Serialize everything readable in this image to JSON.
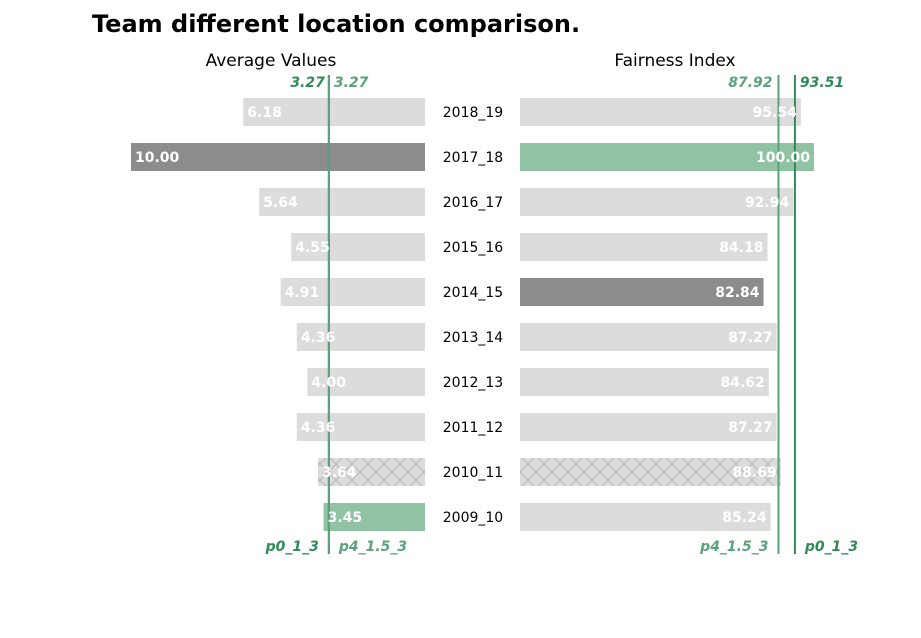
{
  "chart_data": {
    "type": "bar",
    "title": "Team different location comparison.",
    "categories": [
      "2018_19",
      "2017_18",
      "2016_17",
      "2015_16",
      "2014_15",
      "2013_14",
      "2012_13",
      "2011_12",
      "2010_11",
      "2009_10"
    ],
    "panels": [
      {
        "subtitle": "Average Values",
        "orientation": "horizontal-right-to-left",
        "xlim": [
          0,
          10
        ],
        "values": [
          6.18,
          10.0,
          5.64,
          4.55,
          4.91,
          4.36,
          4.0,
          4.36,
          3.64,
          3.45
        ],
        "value_labels": [
          "6.18",
          "10.00",
          "5.64",
          "4.55",
          "4.91",
          "4.36",
          "4.00",
          "4.36",
          "3.64",
          "3.45"
        ],
        "highlight": {
          "2017_18": "dark",
          "2009_10": "green",
          "2010_11": "hatched"
        },
        "reference_lines": [
          {
            "name": "p0_1_3",
            "value": 3.27,
            "label": "3.27",
            "color": "#2e8b57"
          },
          {
            "name": "p4_1.5_3",
            "value": 3.27,
            "label": "3.27",
            "color": "#5aa37a"
          }
        ]
      },
      {
        "subtitle": "Fairness Index",
        "orientation": "horizontal-left-to-right",
        "xlim": [
          0,
          100
        ],
        "values": [
          95.54,
          100.0,
          92.94,
          84.18,
          82.84,
          87.27,
          84.62,
          87.27,
          88.69,
          85.24
        ],
        "value_labels": [
          "95.54",
          "100.00",
          "92.94",
          "84.18",
          "82.84",
          "87.27",
          "84.62",
          "87.27",
          "88.69",
          "85.24"
        ],
        "highlight": {
          "2017_18": "green",
          "2014_15": "dark",
          "2010_11": "hatched"
        },
        "reference_lines": [
          {
            "name": "p4_1.5_3",
            "value": 87.92,
            "label": "87.92",
            "color": "#5aa37a"
          },
          {
            "name": "p0_1_3",
            "value": 93.51,
            "label": "93.51",
            "color": "#2e8b57"
          }
        ]
      }
    ],
    "colors": {
      "default_bar": "#dcdcdc",
      "dark_bar": "#8c8c8c",
      "green_bar": "#8fc3a3",
      "hatch_line": "#b8b8b8"
    },
    "grid": false,
    "legend": "none"
  }
}
